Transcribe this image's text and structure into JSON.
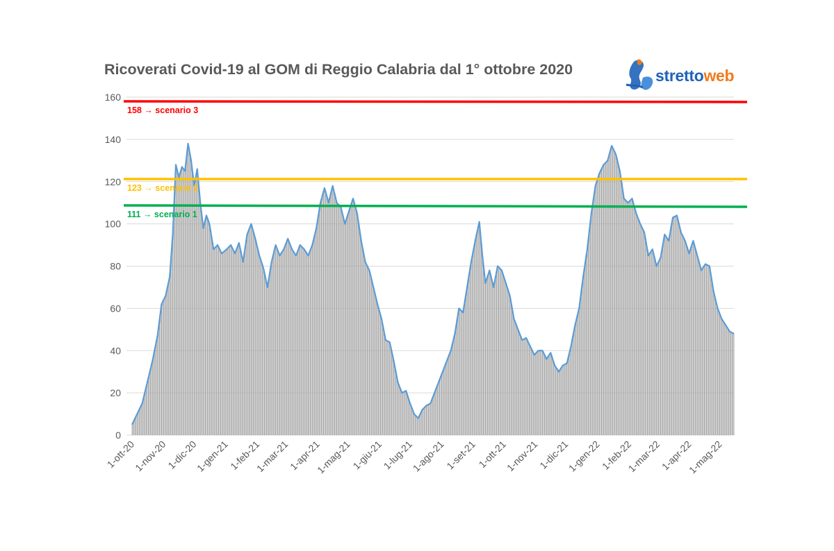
{
  "chart_data": {
    "type": "bar",
    "title": "Ricoverati Covid-19 al GOM di Reggio Calabria dal 1° ottobre 2020",
    "xlabel": "",
    "ylabel": "",
    "ylim": [
      0,
      160
    ],
    "yticks": [
      0,
      20,
      40,
      60,
      80,
      100,
      120,
      140,
      160
    ],
    "grid": true,
    "x_start": "2020-10-01",
    "x_end": "2022-05-15",
    "xtick_labels": [
      "1-ott-20",
      "1-nov-20",
      "1-dic-20",
      "1-gen-21",
      "1-feb-21",
      "1-mar-21",
      "1-apr-21",
      "1-mag-21",
      "1-giu-21",
      "1-lug-21",
      "1-ago-21",
      "1-set-21",
      "1-ott-21",
      "1-nov-21",
      "1-dic-21",
      "1-gen-22",
      "1-feb-22",
      "1-mar-22",
      "1-apr-22",
      "1-mag-22"
    ],
    "series": [
      {
        "type": "bar+line",
        "bar_color": "#a6a6a6",
        "line_color": "#5b9bd5",
        "keypoints": [
          [
            "2020-10-01",
            5
          ],
          [
            "2020-10-06",
            10
          ],
          [
            "2020-10-11",
            15
          ],
          [
            "2020-10-16",
            25
          ],
          [
            "2020-10-21",
            35
          ],
          [
            "2020-10-26",
            47
          ],
          [
            "2020-10-30",
            62
          ],
          [
            "2020-11-03",
            66
          ],
          [
            "2020-11-07",
            75
          ],
          [
            "2020-11-10",
            95
          ],
          [
            "2020-11-13",
            128
          ],
          [
            "2020-11-16",
            122
          ],
          [
            "2020-11-19",
            127
          ],
          [
            "2020-11-22",
            125
          ],
          [
            "2020-11-25",
            138
          ],
          [
            "2020-11-28",
            130
          ],
          [
            "2020-12-01",
            118
          ],
          [
            "2020-12-04",
            126
          ],
          [
            "2020-12-07",
            110
          ],
          [
            "2020-12-10",
            98
          ],
          [
            "2020-12-13",
            104
          ],
          [
            "2020-12-16",
            100
          ],
          [
            "2020-12-20",
            88
          ],
          [
            "2020-12-24",
            90
          ],
          [
            "2020-12-28",
            86
          ],
          [
            "2021-01-02",
            88
          ],
          [
            "2021-01-06",
            90
          ],
          [
            "2021-01-10",
            86
          ],
          [
            "2021-01-14",
            91
          ],
          [
            "2021-01-18",
            82
          ],
          [
            "2021-01-22",
            95
          ],
          [
            "2021-01-26",
            100
          ],
          [
            "2021-01-30",
            93
          ],
          [
            "2021-02-03",
            85
          ],
          [
            "2021-02-07",
            79
          ],
          [
            "2021-02-11",
            70
          ],
          [
            "2021-02-15",
            82
          ],
          [
            "2021-02-19",
            90
          ],
          [
            "2021-02-23",
            85
          ],
          [
            "2021-02-27",
            88
          ],
          [
            "2021-03-03",
            93
          ],
          [
            "2021-03-07",
            88
          ],
          [
            "2021-03-11",
            85
          ],
          [
            "2021-03-15",
            90
          ],
          [
            "2021-03-19",
            88
          ],
          [
            "2021-03-23",
            85
          ],
          [
            "2021-03-27",
            90
          ],
          [
            "2021-03-31",
            98
          ],
          [
            "2021-04-04",
            110
          ],
          [
            "2021-04-08",
            117
          ],
          [
            "2021-04-12",
            110
          ],
          [
            "2021-04-16",
            118
          ],
          [
            "2021-04-20",
            110
          ],
          [
            "2021-04-24",
            108
          ],
          [
            "2021-04-28",
            100
          ],
          [
            "2021-05-02",
            106
          ],
          [
            "2021-05-06",
            112
          ],
          [
            "2021-05-10",
            105
          ],
          [
            "2021-05-14",
            92
          ],
          [
            "2021-05-18",
            82
          ],
          [
            "2021-05-22",
            78
          ],
          [
            "2021-05-26",
            70
          ],
          [
            "2021-05-30",
            62
          ],
          [
            "2021-06-03",
            55
          ],
          [
            "2021-06-07",
            45
          ],
          [
            "2021-06-11",
            44
          ],
          [
            "2021-06-15",
            35
          ],
          [
            "2021-06-19",
            25
          ],
          [
            "2021-06-23",
            20
          ],
          [
            "2021-06-27",
            21
          ],
          [
            "2021-07-01",
            15
          ],
          [
            "2021-07-05",
            10
          ],
          [
            "2021-07-09",
            8
          ],
          [
            "2021-07-13",
            12
          ],
          [
            "2021-07-17",
            14
          ],
          [
            "2021-07-21",
            15
          ],
          [
            "2021-07-25",
            20
          ],
          [
            "2021-07-29",
            25
          ],
          [
            "2021-08-02",
            30
          ],
          [
            "2021-08-06",
            35
          ],
          [
            "2021-08-10",
            40
          ],
          [
            "2021-08-14",
            48
          ],
          [
            "2021-08-18",
            60
          ],
          [
            "2021-08-22",
            58
          ],
          [
            "2021-08-26",
            70
          ],
          [
            "2021-08-30",
            82
          ],
          [
            "2021-09-03",
            92
          ],
          [
            "2021-09-07",
            101
          ],
          [
            "2021-09-10",
            85
          ],
          [
            "2021-09-13",
            72
          ],
          [
            "2021-09-17",
            78
          ],
          [
            "2021-09-21",
            70
          ],
          [
            "2021-09-25",
            80
          ],
          [
            "2021-09-29",
            78
          ],
          [
            "2021-10-03",
            72
          ],
          [
            "2021-10-07",
            66
          ],
          [
            "2021-10-11",
            55
          ],
          [
            "2021-10-15",
            50
          ],
          [
            "2021-10-19",
            45
          ],
          [
            "2021-10-23",
            46
          ],
          [
            "2021-10-27",
            42
          ],
          [
            "2021-10-31",
            38
          ],
          [
            "2021-11-04",
            40
          ],
          [
            "2021-11-08",
            40
          ],
          [
            "2021-11-12",
            36
          ],
          [
            "2021-11-16",
            39
          ],
          [
            "2021-11-20",
            33
          ],
          [
            "2021-11-24",
            30
          ],
          [
            "2021-11-28",
            33
          ],
          [
            "2021-12-02",
            34
          ],
          [
            "2021-12-06",
            42
          ],
          [
            "2021-12-10",
            52
          ],
          [
            "2021-12-14",
            60
          ],
          [
            "2021-12-18",
            75
          ],
          [
            "2021-12-22",
            88
          ],
          [
            "2021-12-26",
            105
          ],
          [
            "2021-12-30",
            118
          ],
          [
            "2022-01-03",
            124
          ],
          [
            "2022-01-07",
            128
          ],
          [
            "2022-01-11",
            130
          ],
          [
            "2022-01-15",
            137
          ],
          [
            "2022-01-19",
            133
          ],
          [
            "2022-01-23",
            125
          ],
          [
            "2022-01-27",
            112
          ],
          [
            "2022-01-31",
            110
          ],
          [
            "2022-02-04",
            112
          ],
          [
            "2022-02-08",
            105
          ],
          [
            "2022-02-12",
            100
          ],
          [
            "2022-02-16",
            96
          ],
          [
            "2022-02-20",
            85
          ],
          [
            "2022-02-24",
            88
          ],
          [
            "2022-02-28",
            80
          ],
          [
            "2022-03-04",
            84
          ],
          [
            "2022-03-08",
            95
          ],
          [
            "2022-03-12",
            92
          ],
          [
            "2022-03-16",
            103
          ],
          [
            "2022-03-20",
            104
          ],
          [
            "2022-03-24",
            96
          ],
          [
            "2022-03-28",
            92
          ],
          [
            "2022-04-01",
            86
          ],
          [
            "2022-04-05",
            92
          ],
          [
            "2022-04-09",
            85
          ],
          [
            "2022-04-13",
            78
          ],
          [
            "2022-04-17",
            81
          ],
          [
            "2022-04-21",
            80
          ],
          [
            "2022-04-25",
            68
          ],
          [
            "2022-04-29",
            60
          ],
          [
            "2022-05-03",
            55
          ],
          [
            "2022-05-07",
            52
          ],
          [
            "2022-05-11",
            49
          ],
          [
            "2022-05-15",
            48
          ]
        ]
      }
    ],
    "reference_lines": [
      {
        "value": 158,
        "label": "158 → scenario 3",
        "color": "#ff0000"
      },
      {
        "value": 123,
        "label": "123 → scenario 2",
        "color": "#ffc000"
      },
      {
        "value": 111,
        "label": "111 → scenario 1",
        "color": "#00b050"
      }
    ]
  },
  "logo": {
    "name": "strettoweb-logo",
    "part1": "stretto",
    "part2": "web"
  }
}
